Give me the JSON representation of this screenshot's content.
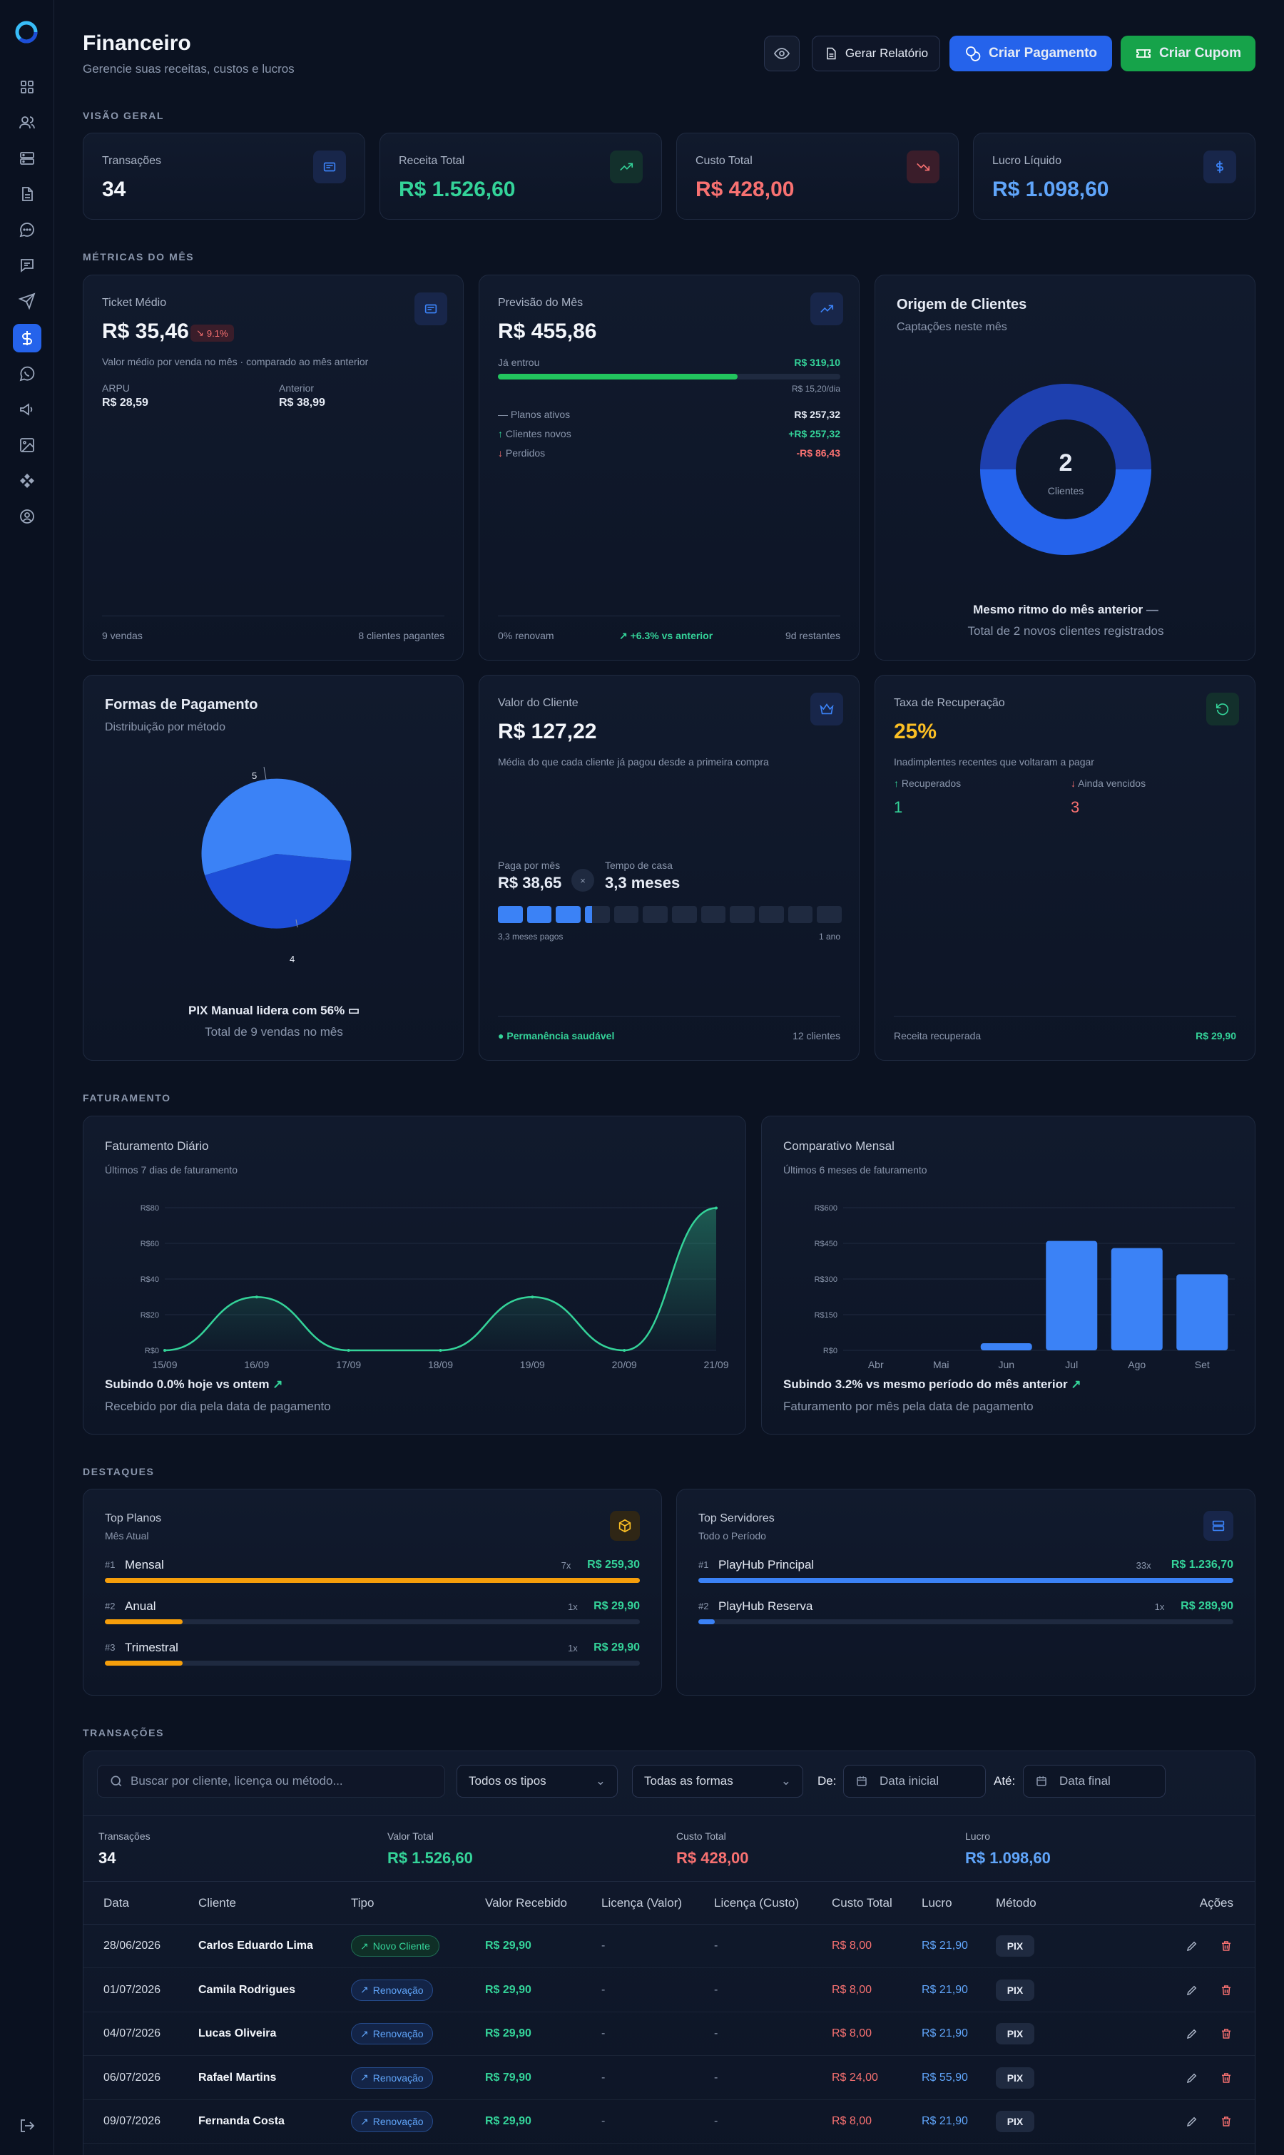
{
  "header": {
    "title": "Financeiro",
    "subtitle": "Gerencie suas receitas, custos e lucros",
    "report_label": "Gerar Relatório",
    "payment_label": "Criar Pagamento",
    "coupon_label": "Criar Cupom"
  },
  "sections": {
    "overview": "VISÃO GERAL",
    "metrics": "MÉTRICAS DO MÊS",
    "billing": "FATURAMENTO",
    "highlights": "DESTAQUES",
    "transactions": "TRANSAÇÕES"
  },
  "overview": [
    {
      "label": "Transações",
      "value": "34",
      "color": "#f3f6fb",
      "icon": "receipt-icon"
    },
    {
      "label": "Receita Total",
      "value": "R$ 1.526,60",
      "color": "#34d399",
      "icon": "trending-up-icon"
    },
    {
      "label": "Custo Total",
      "value": "R$ 428,00",
      "color": "#f87171",
      "icon": "trending-down-icon"
    },
    {
      "label": "Lucro Líquido",
      "value": "R$ 1.098,60",
      "color": "#60a5fa",
      "icon": "dollar-icon"
    }
  ],
  "ticket": {
    "label": "Ticket Médio",
    "value": "R$ 35,46",
    "change": "9.1%",
    "desc": "Valor médio por venda no mês · comparado ao mês anterior",
    "arpu_label": "ARPU",
    "arpu_value": "R$ 28,59",
    "prev_label": "Anterior",
    "prev_value": "R$ 38,99",
    "footer_left": "9 vendas",
    "footer_right": "8 clientes pagantes"
  },
  "forecast": {
    "label": "Previsão do Mês",
    "value": "R$ 455,86",
    "entered_label": "Já entrou",
    "entered_value": "R$ 319,10",
    "progress": 0.7,
    "per_day": "R$ 15,20/dia",
    "rows": [
      {
        "label": "Planos ativos",
        "value": "R$ 257,32"
      },
      {
        "label": "Clientes novos",
        "value": "+R$ 257,32"
      },
      {
        "label": "Perdidos",
        "value": "-R$ 86,43"
      }
    ],
    "footer_left": "0% renovam",
    "footer_mid": "+6.3% vs anterior",
    "footer_right": "9d restantes"
  },
  "origin": {
    "title": "Origem de Clientes",
    "subtitle": "Captações neste mês",
    "center_value": "2",
    "center_label": "Clientes",
    "slices": [
      0.5,
      0.5
    ],
    "note": "Mesmo ritmo do mês anterior",
    "note_sub": "Total de 2 novos clientes registrados"
  },
  "payment_forms": {
    "title": "Formas de Pagamento",
    "subtitle": "Distribuição por método",
    "label_a": "5",
    "label_b": "4",
    "slices": [
      5,
      4
    ],
    "note": "PIX Manual lidera com 56%",
    "note_sub": "Total de 9 vendas no mês"
  },
  "client_value": {
    "label": "Valor do Cliente",
    "value": "R$ 127,22",
    "desc": "Média do que cada cliente já pagou desde a primeira compra",
    "monthly_label": "Paga por mês",
    "monthly_value": "R$ 38,65",
    "tenure_label": "Tempo de casa",
    "tenure_value": "3,3 meses",
    "months_paid": 3.3,
    "months_total": 12,
    "scale_left": "3,3 meses pagos",
    "scale_right": "1 ano",
    "footer_left": "Permanência saudável",
    "footer_right": "12 clientes"
  },
  "recovery": {
    "label": "Taxa de Recuperação",
    "value": "25%",
    "desc": "Inadimplentes recentes que voltaram a pagar",
    "recovered_label": "Recuperados",
    "recovered_value": "1",
    "overdue_label": "Ainda vencidos",
    "overdue_value": "3",
    "footer_left": "Receita recuperada",
    "footer_right": "R$ 29,90"
  },
  "daily": {
    "title": "Faturamento Diário",
    "subtitle": "Últimos 7 dias de faturamento",
    "note": "Subindo 0.0% hoje vs ontem",
    "note_sub": "Recebido por dia pela data de pagamento"
  },
  "monthly": {
    "title": "Comparativo Mensal",
    "subtitle": "Últimos 6 meses de faturamento",
    "note": "Subindo 3.2% vs mesmo período do mês anterior",
    "note_sub": "Faturamento por mês pela data de pagamento"
  },
  "chart_data": [
    {
      "type": "area",
      "title": "Faturamento Diário",
      "categories": [
        "15/09",
        "16/09",
        "17/09",
        "18/09",
        "19/09",
        "20/09",
        "21/09"
      ],
      "values": [
        0,
        29.9,
        0,
        0,
        29.9,
        0,
        79.8
      ],
      "ylim": [
        0,
        80
      ],
      "yticks": [
        "R$0",
        "R$20",
        "R$40",
        "R$60",
        "R$80"
      ],
      "grid": true
    },
    {
      "type": "bar",
      "title": "Comparativo Mensal",
      "categories": [
        "Abr",
        "Mai",
        "Jun",
        "Jul",
        "Ago",
        "Set"
      ],
      "values": [
        0,
        0,
        29.9,
        460,
        430,
        320
      ],
      "ylim": [
        0,
        600
      ],
      "yticks": [
        "R$0",
        "R$150",
        "R$300",
        "R$450",
        "R$600"
      ],
      "grid": true
    }
  ],
  "top_plans": {
    "title": "Top Planos",
    "subtitle": "Mês Atual",
    "items": [
      {
        "rank": "#1",
        "name": "Mensal",
        "count": "7x",
        "value": "R$ 259,30",
        "fill": 1.0
      },
      {
        "rank": "#2",
        "name": "Anual",
        "count": "1x",
        "value": "R$ 29,90",
        "fill": 0.145
      },
      {
        "rank": "#3",
        "name": "Trimestral",
        "count": "1x",
        "value": "R$ 29,90",
        "fill": 0.145
      }
    ]
  },
  "top_servers": {
    "title": "Top Servidores",
    "subtitle": "Todo o Período",
    "items": [
      {
        "rank": "#1",
        "name": "PlayHub Principal",
        "count": "33x",
        "value": "R$ 1.236,70",
        "fill": 1.0
      },
      {
        "rank": "#2",
        "name": "PlayHub Reserva",
        "count": "1x",
        "value": "R$ 289,90",
        "fill": 0.03
      }
    ]
  },
  "filters": {
    "search_placeholder": "Buscar por cliente, licença ou método...",
    "type_value": "Todos os tipos",
    "form_value": "Todas as formas",
    "from_label": "De:",
    "from_value": "Data inicial",
    "to_label": "Até:",
    "to_value": "Data final"
  },
  "summary": [
    {
      "label": "Transações",
      "value": "34",
      "color": "#f3f6fb"
    },
    {
      "label": "Valor Total",
      "value": "R$ 1.526,60",
      "color": "#34d399"
    },
    {
      "label": "Custo Total",
      "value": "R$ 428,00",
      "color": "#f87171"
    },
    {
      "label": "Lucro",
      "value": "R$ 1.098,60",
      "color": "#60a5fa"
    }
  ],
  "table": {
    "headers": [
      "Data",
      "Cliente",
      "Tipo",
      "Valor Recebido",
      "Licença (Valor)",
      "Licença (Custo)",
      "Custo Total",
      "Lucro",
      "Método",
      "Ações"
    ],
    "rows": [
      {
        "date": "28/06/2026",
        "client": "Carlos Eduardo Lima",
        "type": "Novo Cliente",
        "value": "R$ 29,90",
        "lic_value": "-",
        "lic_cost": "-",
        "cost": "R$ 8,00",
        "profit": "R$ 21,90",
        "method": "PIX"
      },
      {
        "date": "01/07/2026",
        "client": "Camila Rodrigues",
        "type": "Renovação",
        "value": "R$ 29,90",
        "lic_value": "-",
        "lic_cost": "-",
        "cost": "R$ 8,00",
        "profit": "R$ 21,90",
        "method": "PIX"
      },
      {
        "date": "04/07/2026",
        "client": "Lucas Oliveira",
        "type": "Renovação",
        "value": "R$ 29,90",
        "lic_value": "-",
        "lic_cost": "-",
        "cost": "R$ 8,00",
        "profit": "R$ 21,90",
        "method": "PIX"
      },
      {
        "date": "06/07/2026",
        "client": "Rafael Martins",
        "type": "Renovação",
        "value": "R$ 79,90",
        "lic_value": "-",
        "lic_cost": "-",
        "cost": "R$ 24,00",
        "profit": "R$ 55,90",
        "method": "PIX"
      },
      {
        "date": "09/07/2026",
        "client": "Fernanda Costa",
        "type": "Renovação",
        "value": "R$ 29,90",
        "lic_value": "-",
        "lic_cost": "-",
        "cost": "R$ 8,00",
        "profit": "R$ 21,90",
        "method": "PIX"
      }
    ]
  },
  "colors": {
    "accent": "#2563eb",
    "green": "#34d399",
    "red": "#f87171",
    "blue": "#60a5fa",
    "yellow": "#fbbf24"
  }
}
